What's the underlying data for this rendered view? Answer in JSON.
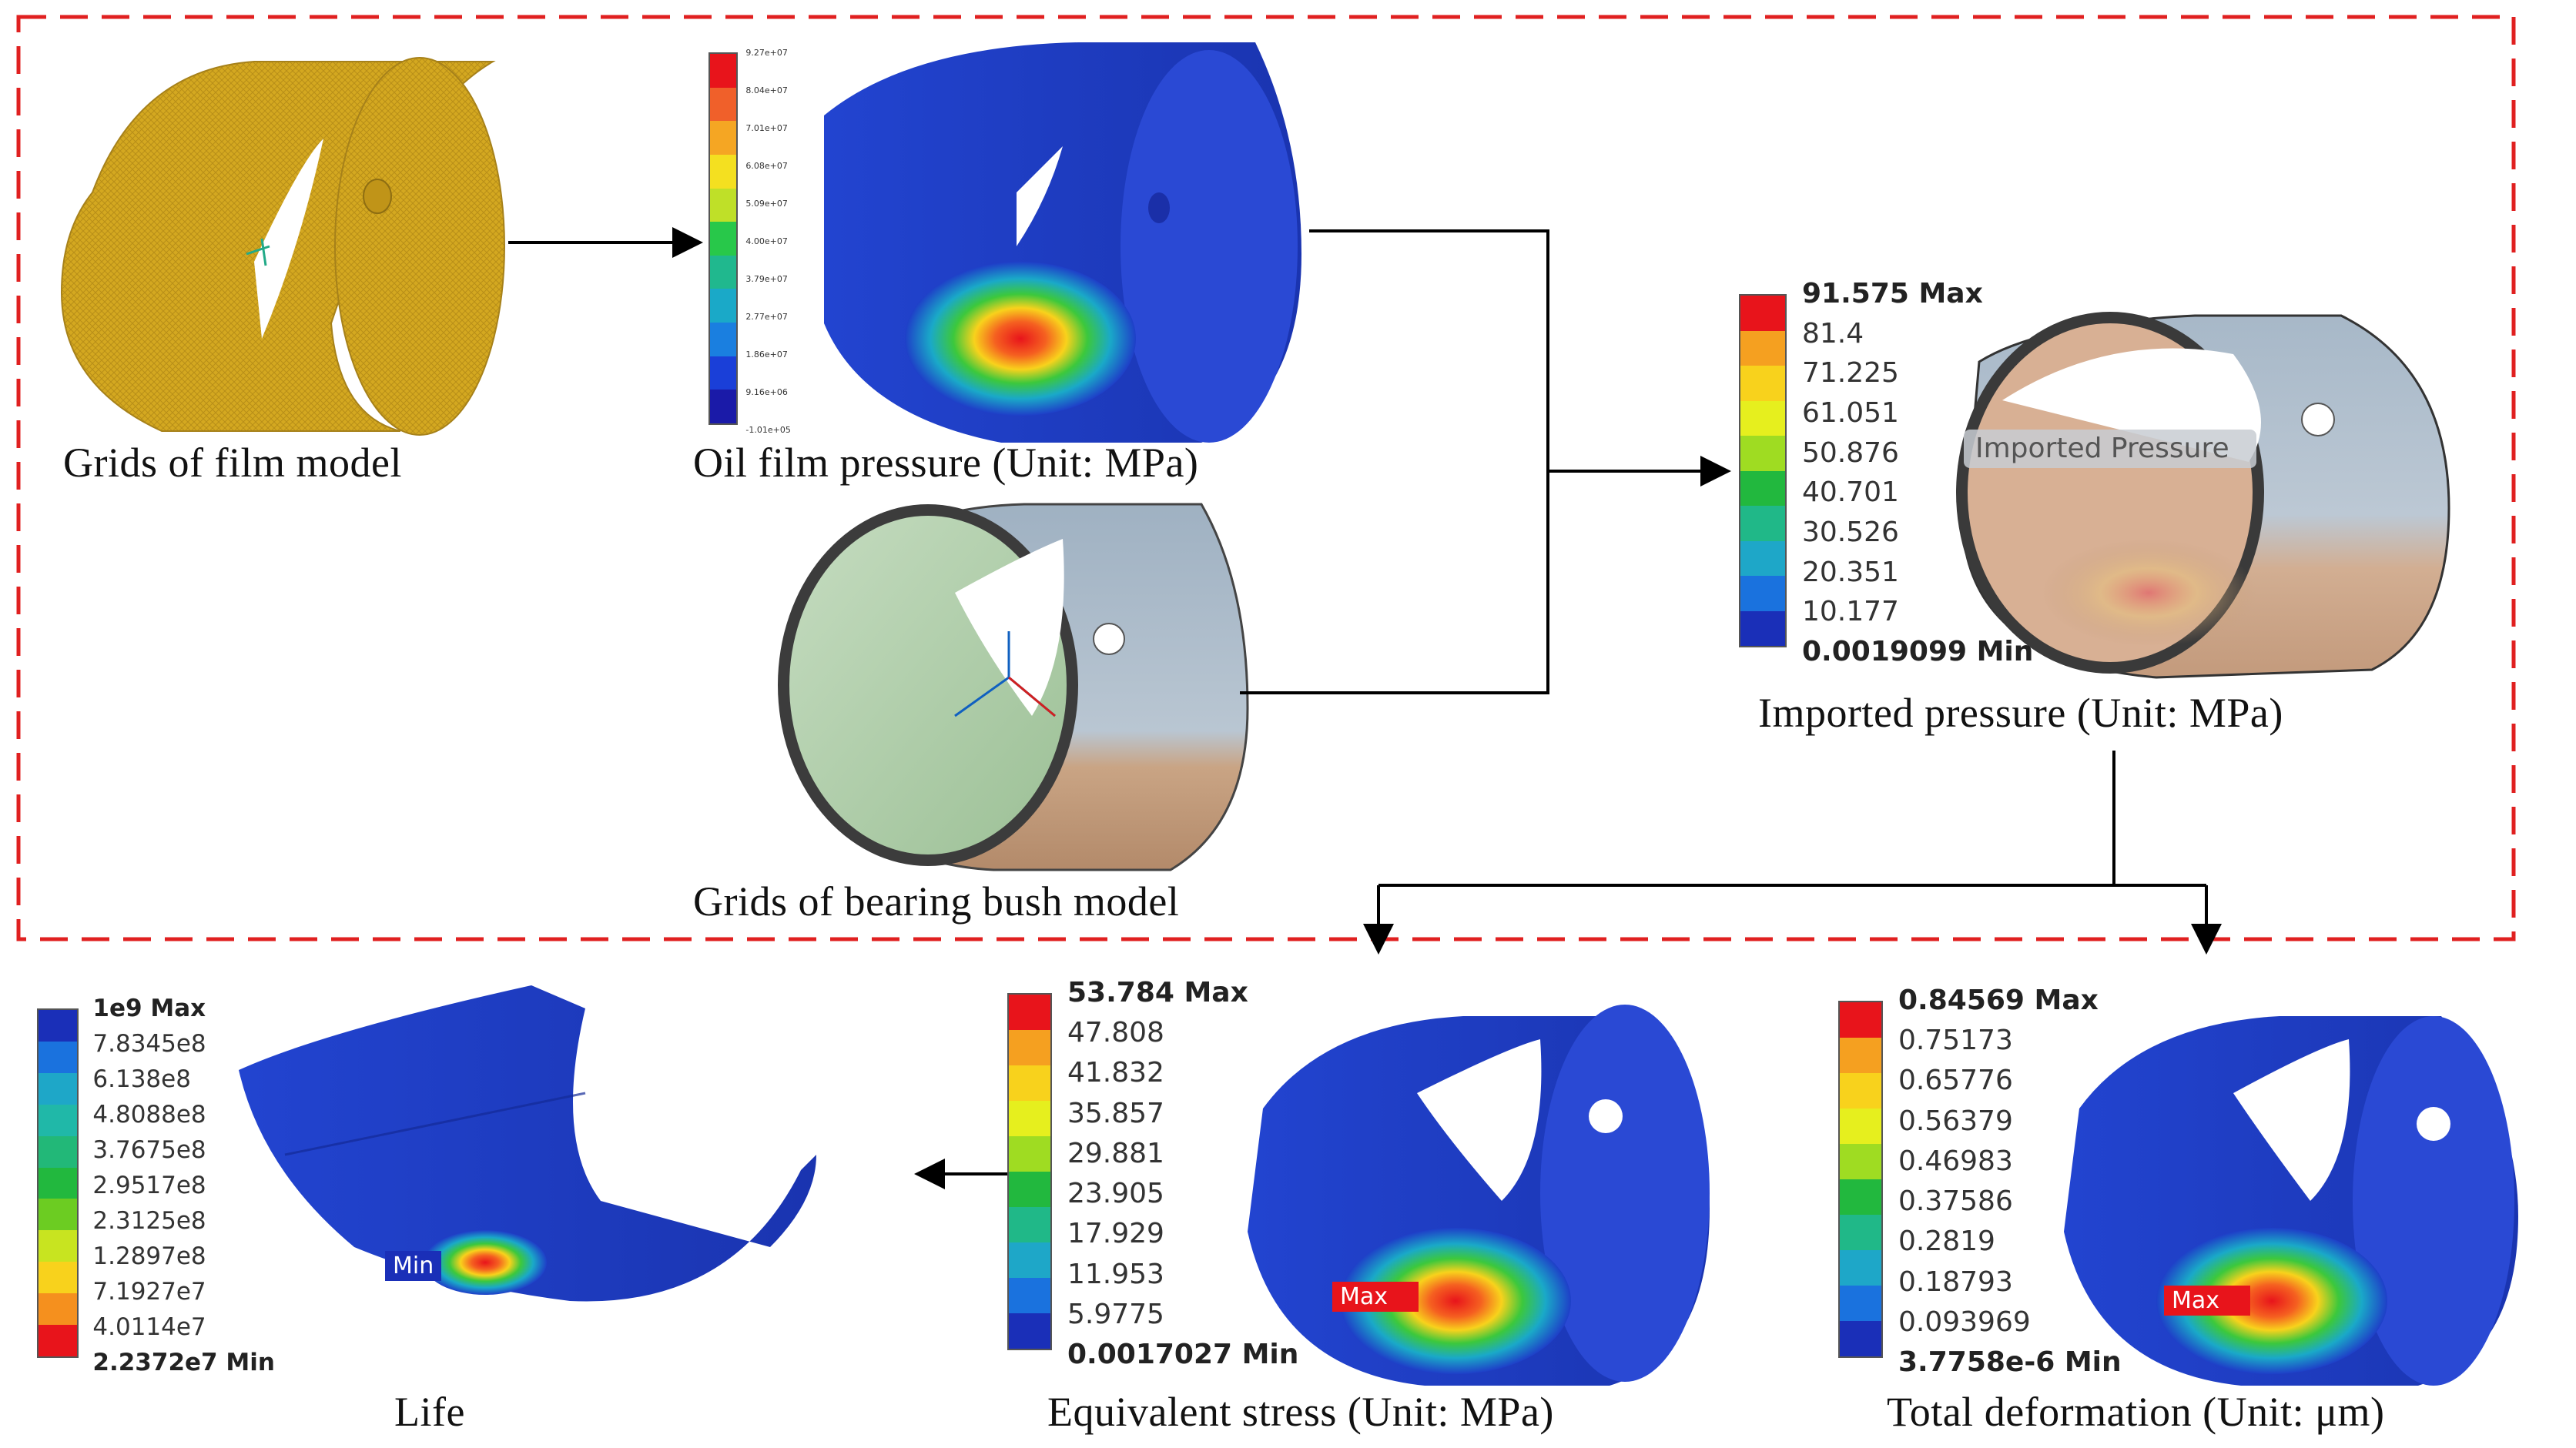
{
  "captions": {
    "film_grid": "Grids of film model",
    "oil_pressure": "Oil film pressure (Unit: MPa)",
    "bush_grid": "Grids of bearing bush  model",
    "imported_pressure": "Imported pressure (Unit: MPa)",
    "life": "Life",
    "stress": "Equivalent stress (Unit: MPa)",
    "deformation": "Total deformation (Unit: μm)"
  },
  "overlay_labels": {
    "imported_pressure_tag": "Imported Pressure",
    "life_min": "Min",
    "stress_max": "Max",
    "deformation_max": "Max"
  },
  "legends": {
    "oil_pressure": {
      "labels": [
        "9.27e+07",
        "8.04e+07",
        "7.01e+07",
        "6.08e+07",
        "5.09e+07",
        "4.00e+07",
        "3.79e+07",
        "2.77e+07",
        "1.86e+07",
        "9.16e+06",
        "-1.01e+05"
      ],
      "colors": [
        "#e8141b",
        "#f0602a",
        "#f5a623",
        "#f4e020",
        "#bfe028",
        "#28c84a",
        "#20b88e",
        "#1aa9c8",
        "#1a7fe0",
        "#1a3fd8",
        "#1a1aa8"
      ]
    },
    "imported_pressure": {
      "labels": [
        "91.575 Max",
        "81.4",
        "71.225",
        "61.051",
        "50.876",
        "40.701",
        "30.526",
        "20.351",
        "10.177",
        "0.0019099 Min"
      ],
      "colors": [
        "#e8141b",
        "#f5a020",
        "#f8d21c",
        "#e6ef1e",
        "#9fdc22",
        "#22b83e",
        "#20b888",
        "#1ea7c8",
        "#1a72de",
        "#1a2fb8"
      ]
    },
    "life": {
      "labels": [
        "1e9 Max",
        "7.8345e8",
        "6.138e8",
        "4.8088e8",
        "3.7675e8",
        "2.9517e8",
        "2.3125e8",
        "1.2897e8",
        "7.1927e7",
        "4.0114e7",
        "2.2372e7 Min"
      ],
      "colors": [
        "#1a2fb8",
        "#1a72de",
        "#1ea7c8",
        "#20b8a8",
        "#22b878",
        "#22b83e",
        "#6ccc22",
        "#c8e420",
        "#f8d21c",
        "#f5901e",
        "#e8141b"
      ]
    },
    "stress": {
      "labels": [
        "53.784 Max",
        "47.808",
        "41.832",
        "35.857",
        "29.881",
        "23.905",
        "17.929",
        "11.953",
        "5.9775",
        "0.0017027 Min"
      ],
      "colors": [
        "#e8141b",
        "#f5a020",
        "#f8d21c",
        "#e6ef1e",
        "#9fdc22",
        "#22b83e",
        "#20b888",
        "#1ea7c8",
        "#1a72de",
        "#1a2fb8"
      ]
    },
    "deformation": {
      "labels": [
        "0.84569 Max",
        "0.75173",
        "0.65776",
        "0.56379",
        "0.46983",
        "0.37586",
        "0.2819",
        "0.18793",
        "0.093969",
        "3.7758e-6 Min"
      ],
      "colors": [
        "#e8141b",
        "#f5a020",
        "#f8d21c",
        "#e6ef1e",
        "#9fdc22",
        "#22b83e",
        "#20b888",
        "#1ea7c8",
        "#1a72de",
        "#1a2fb8"
      ]
    }
  },
  "colors": {
    "dashed_frame": "#e02020",
    "film_mesh": "#d4a820",
    "bush_shell": "#a9b9c8",
    "bush_bottom": "#c49a7a",
    "bush_inner": "#b8d4b0",
    "result_blue": "#1e3fc8",
    "arrow": "#000000"
  }
}
